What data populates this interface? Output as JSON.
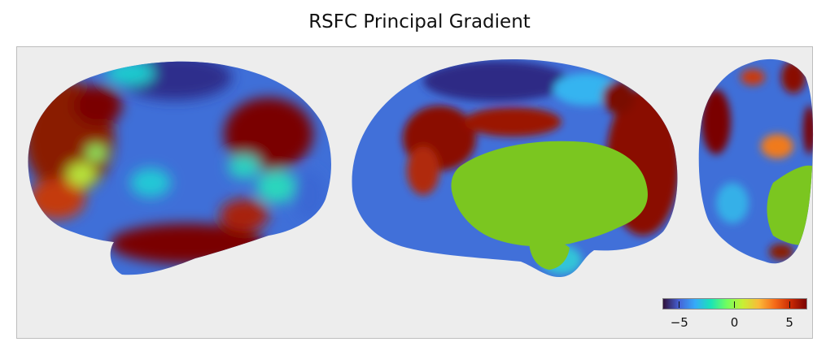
{
  "figure": {
    "title": "RSFC Principal Gradient"
  },
  "colorbar": {
    "colormap": "turbo",
    "colors": [
      "#30123b",
      "#4662d7",
      "#36aaf9",
      "#1ae4b6",
      "#72fe5e",
      "#c8ef34",
      "#faba39",
      "#f66b19",
      "#ca2a04",
      "#7a0403"
    ],
    "ticks": [
      {
        "value": -5,
        "label": "−5"
      },
      {
        "value": 0,
        "label": "0"
      },
      {
        "value": 5,
        "label": "5"
      }
    ],
    "vmin": -6.5,
    "vmax": 6.5
  },
  "views": [
    {
      "name": "lateral-view"
    },
    {
      "name": "medial-view"
    },
    {
      "name": "dorsal-view"
    }
  ]
}
